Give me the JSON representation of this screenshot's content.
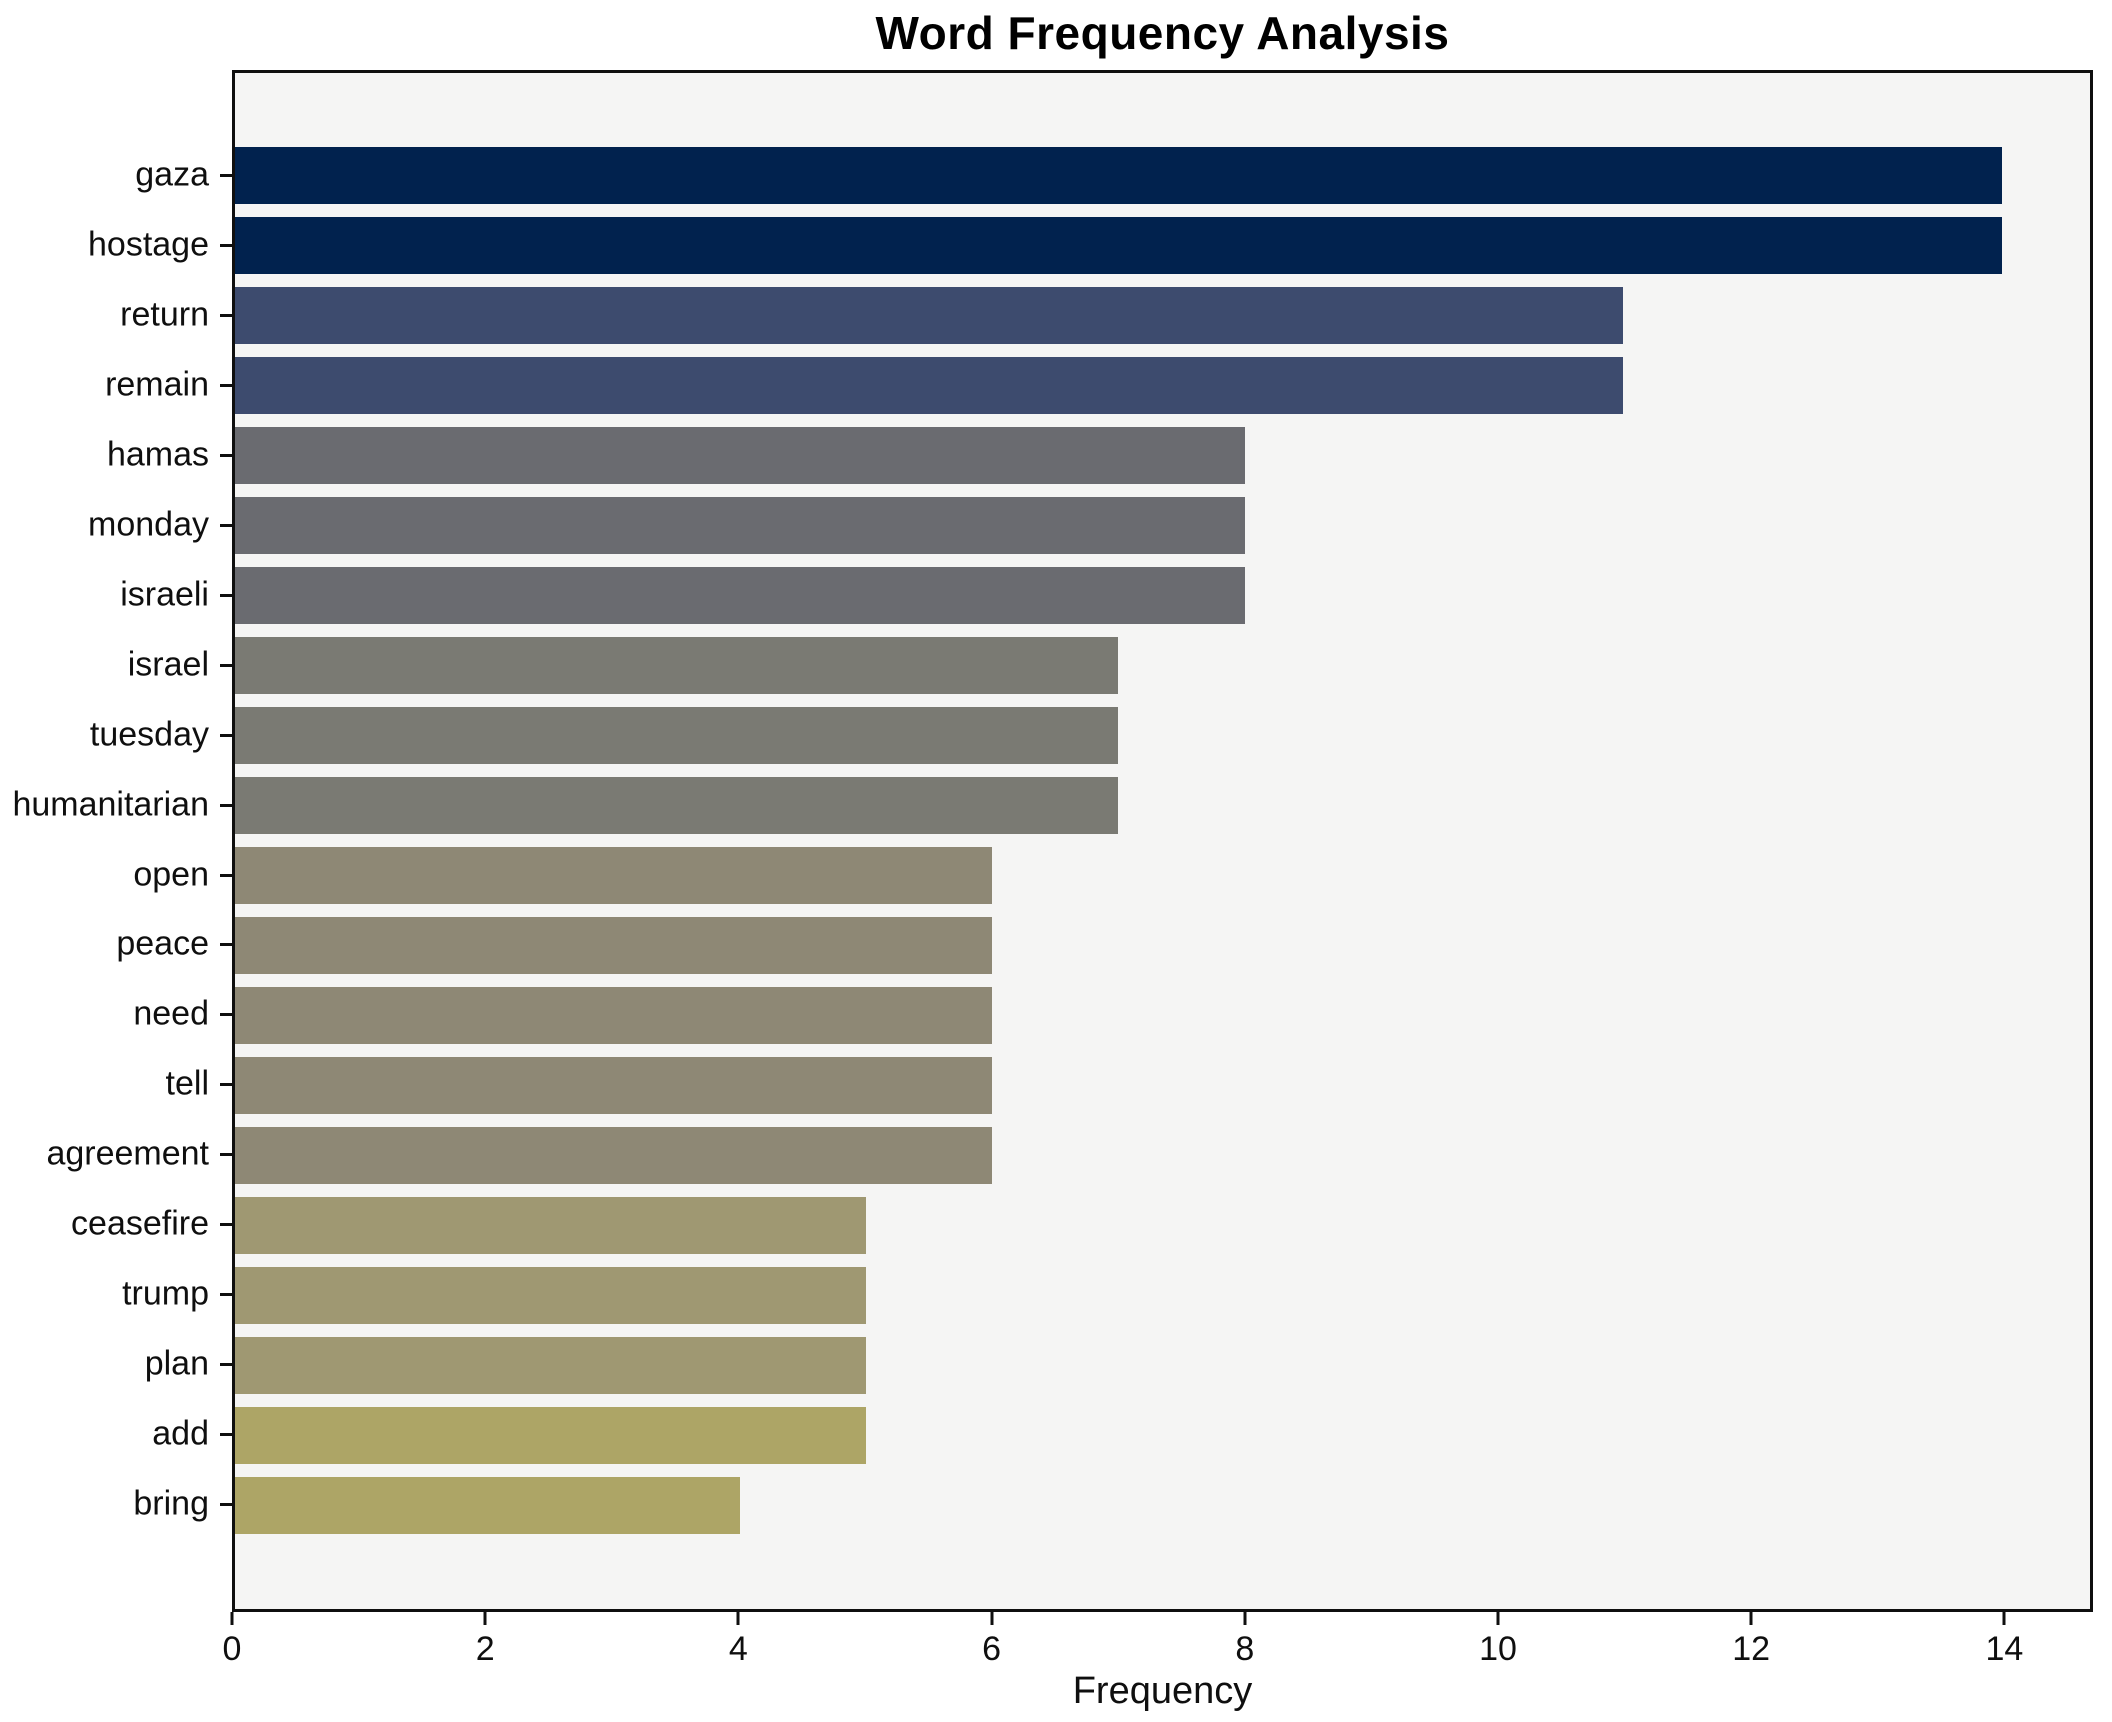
{
  "title": "Word Frequency Analysis",
  "chart_data": {
    "type": "bar",
    "orientation": "horizontal",
    "title": "Word Frequency Analysis",
    "xlabel": "Frequency",
    "ylabel": "",
    "xlim": [
      0,
      14.7
    ],
    "x_ticks": [
      0,
      2,
      4,
      6,
      8,
      10,
      12,
      14
    ],
    "grid": false,
    "legend": false,
    "plot_background": "#f5f5f4",
    "figure_background": "#ffffff",
    "axis_color": "#0f0f0f",
    "bars": [
      {
        "word": "gaza",
        "value": 14,
        "color": "#01224e"
      },
      {
        "word": "hostage",
        "value": 14,
        "color": "#01224e"
      },
      {
        "word": "return",
        "value": 11,
        "color": "#3d4b6e"
      },
      {
        "word": "remain",
        "value": 11,
        "color": "#3d4b6e"
      },
      {
        "word": "hamas",
        "value": 8,
        "color": "#6a6b70"
      },
      {
        "word": "monday",
        "value": 8,
        "color": "#6a6b70"
      },
      {
        "word": "israeli",
        "value": 8,
        "color": "#6a6b70"
      },
      {
        "word": "israel",
        "value": 7,
        "color": "#7a7a73"
      },
      {
        "word": "tuesday",
        "value": 7,
        "color": "#7a7a73"
      },
      {
        "word": "humanitarian",
        "value": 7,
        "color": "#7a7a73"
      },
      {
        "word": "open",
        "value": 6,
        "color": "#8e8875"
      },
      {
        "word": "peace",
        "value": 6,
        "color": "#8e8875"
      },
      {
        "word": "need",
        "value": 6,
        "color": "#8e8875"
      },
      {
        "word": "tell",
        "value": 6,
        "color": "#8e8875"
      },
      {
        "word": "agreement",
        "value": 6,
        "color": "#8e8875"
      },
      {
        "word": "ceasefire",
        "value": 5,
        "color": "#9f9872"
      },
      {
        "word": "trump",
        "value": 5,
        "color": "#9f9872"
      },
      {
        "word": "plan",
        "value": 5,
        "color": "#9f9872"
      },
      {
        "word": "add",
        "value": 5,
        "color": "#ada566"
      },
      {
        "word": "bring",
        "value": 4,
        "color": "#ada566"
      }
    ]
  }
}
